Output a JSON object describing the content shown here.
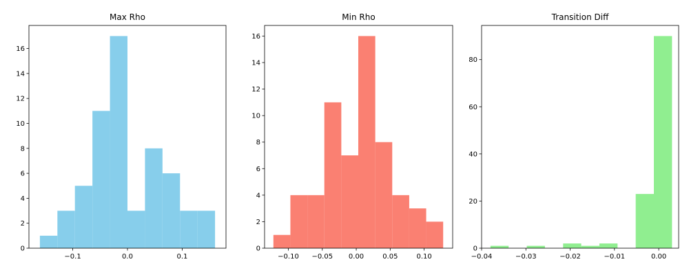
{
  "chart_data": [
    {
      "type": "bar",
      "title": "Max Rho",
      "color": "#87ceeb",
      "xlim": [
        -0.18,
        0.18
      ],
      "ylim": [
        0,
        17.85
      ],
      "xticks": [
        {
          "value": -0.1,
          "label": "−0.1"
        },
        {
          "value": 0.0,
          "label": "0.0"
        },
        {
          "value": 0.1,
          "label": "0.1"
        }
      ],
      "yticks": [
        {
          "value": 0,
          "label": "0"
        },
        {
          "value": 2,
          "label": "2"
        },
        {
          "value": 4,
          "label": "4"
        },
        {
          "value": 6,
          "label": "6"
        },
        {
          "value": 8,
          "label": "8"
        },
        {
          "value": 10,
          "label": "10"
        },
        {
          "value": 12,
          "label": "12"
        },
        {
          "value": 14,
          "label": "14"
        },
        {
          "value": 16,
          "label": "16"
        }
      ],
      "bin_edges": [
        -0.16,
        -0.128,
        -0.096,
        -0.064,
        -0.032,
        0.0,
        0.032,
        0.064,
        0.096,
        0.128,
        0.16
      ],
      "counts": [
        1,
        3,
        5,
        11,
        17,
        3,
        8,
        6,
        3,
        3
      ]
    },
    {
      "type": "bar",
      "title": "Min Rho",
      "color": "#fa8072",
      "xlim": [
        -0.135,
        0.142
      ],
      "ylim": [
        0,
        16.8
      ],
      "xticks": [
        {
          "value": -0.1,
          "label": "−0.10"
        },
        {
          "value": -0.05,
          "label": "−0.05"
        },
        {
          "value": 0.0,
          "label": "0.00"
        },
        {
          "value": 0.05,
          "label": "0.05"
        },
        {
          "value": 0.1,
          "label": "0.10"
        }
      ],
      "yticks": [
        {
          "value": 0,
          "label": "0"
        },
        {
          "value": 2,
          "label": "2"
        },
        {
          "value": 4,
          "label": "4"
        },
        {
          "value": 6,
          "label": "6"
        },
        {
          "value": 8,
          "label": "8"
        },
        {
          "value": 10,
          "label": "10"
        },
        {
          "value": 12,
          "label": "12"
        },
        {
          "value": 14,
          "label": "14"
        },
        {
          "value": 16,
          "label": "16"
        }
      ],
      "bin_edges": [
        -0.122,
        -0.097,
        -0.072,
        -0.047,
        -0.022,
        0.003,
        0.028,
        0.053,
        0.078,
        0.103,
        0.128
      ],
      "counts": [
        1,
        4,
        4,
        11,
        7,
        16,
        8,
        4,
        3,
        2
      ]
    },
    {
      "type": "bar",
      "title": "Transition Diff",
      "color": "#90ee90",
      "xlim": [
        -0.04,
        0.0045
      ],
      "ylim": [
        0,
        94.5
      ],
      "xticks": [
        {
          "value": -0.04,
          "label": "−0.04"
        },
        {
          "value": -0.03,
          "label": "−0.03"
        },
        {
          "value": -0.02,
          "label": "−0.02"
        },
        {
          "value": -0.01,
          "label": "−0.01"
        },
        {
          "value": 0.0,
          "label": "0.00"
        }
      ],
      "yticks": [
        {
          "value": 0,
          "label": "0"
        },
        {
          "value": 20,
          "label": "20"
        },
        {
          "value": 40,
          "label": "40"
        },
        {
          "value": 60,
          "label": "60"
        },
        {
          "value": 80,
          "label": "80"
        }
      ],
      "bin_edges": [
        -0.038,
        -0.0339,
        -0.0298,
        -0.0257,
        -0.0216,
        -0.0175,
        -0.0134,
        -0.0093,
        -0.0052,
        -0.0011,
        0.003
      ],
      "counts": [
        1,
        0,
        1,
        0,
        2,
        1,
        2,
        0,
        23,
        90
      ]
    }
  ]
}
